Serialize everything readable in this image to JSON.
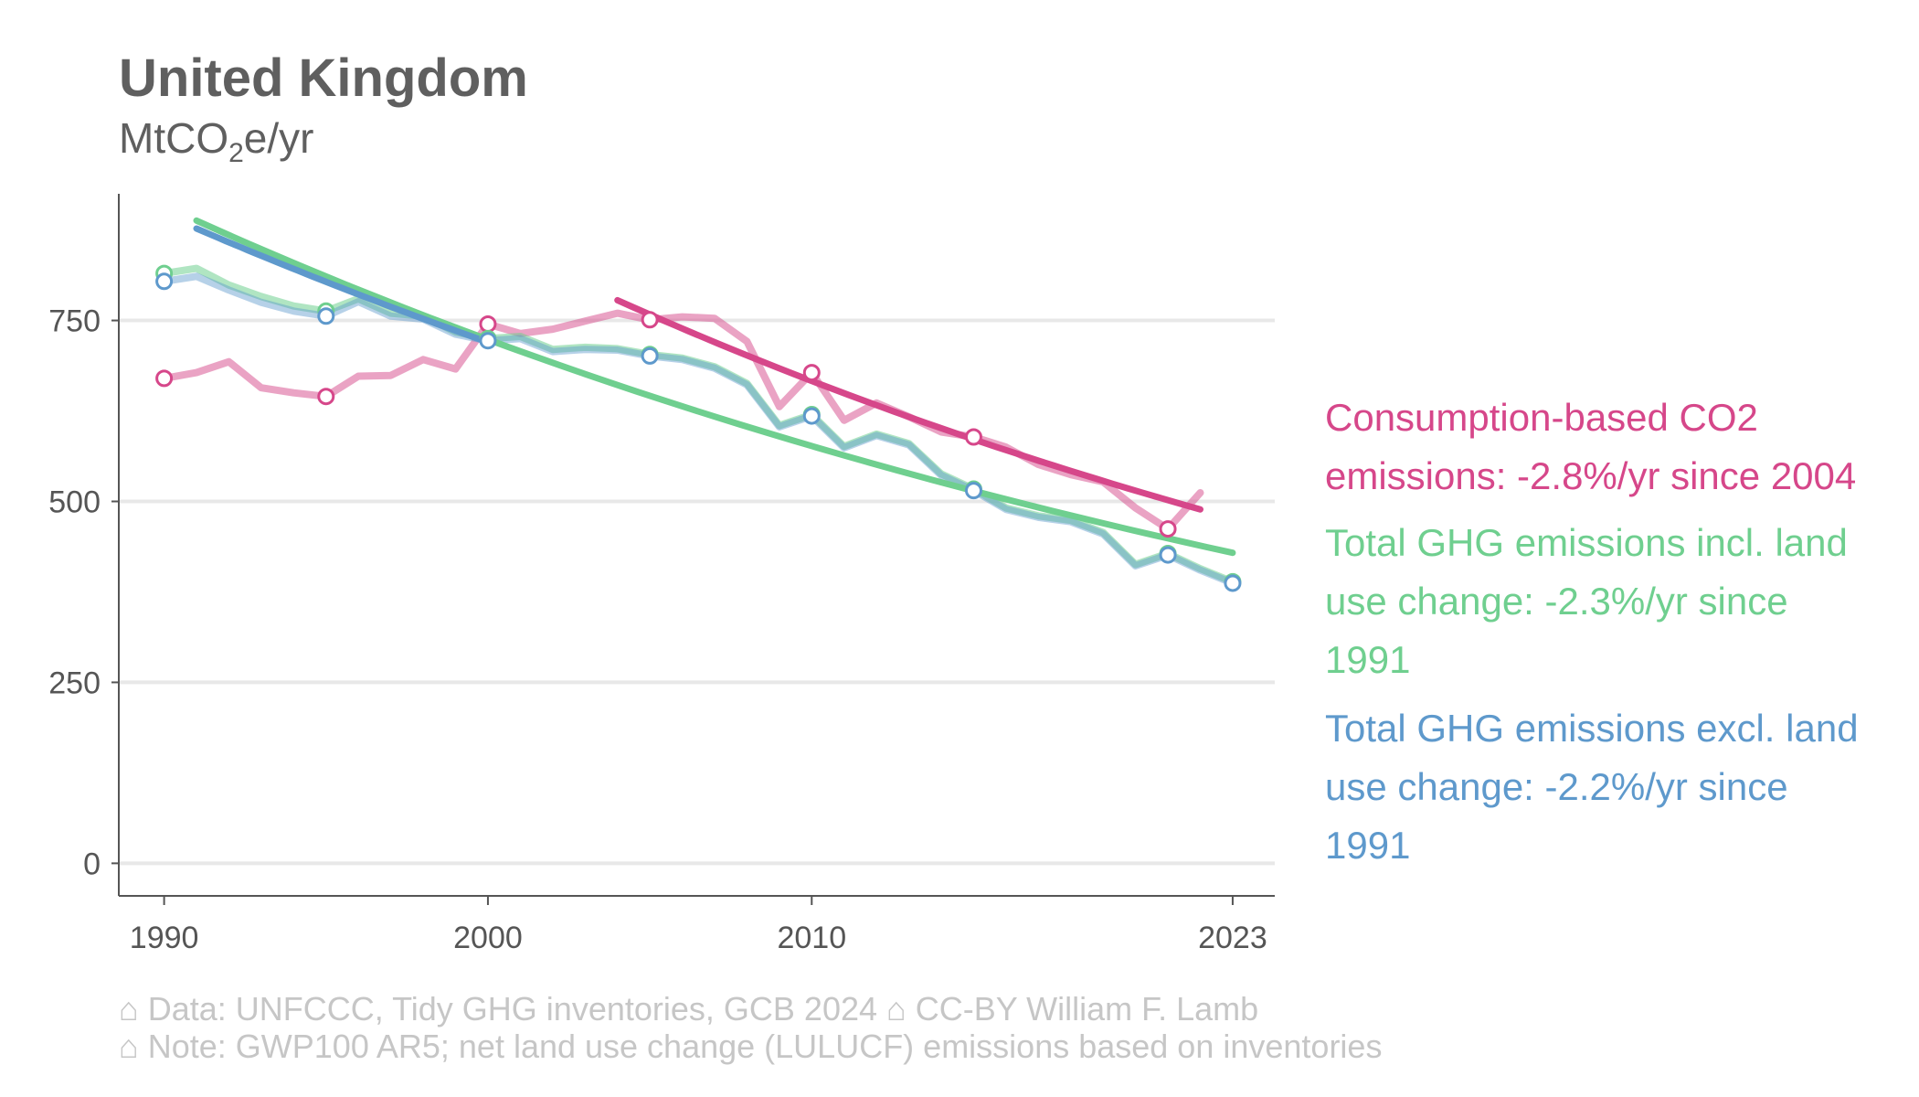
{
  "title": "United Kingdom",
  "subtitle_unit": {
    "main": "MtCO",
    "sub": "2",
    "tail": "e/yr"
  },
  "colors": {
    "consumption": "#d6478a",
    "incl_luc": "#6fcf8f",
    "excl_luc": "#5e99cc",
    "grid": "#e8e8e8",
    "axis": "#555555",
    "tick_text": "#555555",
    "footer": "#c6c6c6"
  },
  "chart_data": {
    "type": "line",
    "title": "United Kingdom",
    "ylabel": "MtCO2e/yr",
    "xlim": [
      1988.6,
      2024.3
    ],
    "ylim": [
      -45,
      925
    ],
    "x_ticks": [
      1990,
      2000,
      2010,
      2023
    ],
    "y_ticks": [
      0,
      250,
      500,
      750
    ],
    "grid": "horizontal",
    "series": [
      {
        "key": "consumption",
        "name": "Consumption-based CO2 emissions",
        "years": [
          1990,
          1991,
          1992,
          1993,
          1994,
          1995,
          1996,
          1997,
          1998,
          1999,
          2000,
          2001,
          2002,
          2003,
          2004,
          2005,
          2006,
          2007,
          2008,
          2009,
          2010,
          2011,
          2012,
          2013,
          2014,
          2015,
          2016,
          2017,
          2018,
          2019,
          2020,
          2021,
          2022
        ],
        "values": [
          670,
          678,
          693,
          657,
          650,
          645,
          673,
          674,
          696,
          683,
          745,
          732,
          738,
          749,
          760,
          751,
          755,
          753,
          721,
          631,
          678,
          612,
          636,
          617,
          596,
          589,
          575,
          551,
          537,
          527,
          491,
          462,
          512
        ],
        "markers": [
          1990,
          1995,
          2000,
          2005,
          2010,
          2015,
          2021
        ]
      },
      {
        "key": "incl_luc",
        "name": "Total GHG emissions incl. land use change",
        "years": [
          1990,
          1991,
          1992,
          1993,
          1994,
          1995,
          1996,
          1997,
          1998,
          1999,
          2000,
          2001,
          2002,
          2003,
          2004,
          2005,
          2006,
          2007,
          2008,
          2009,
          2010,
          2011,
          2012,
          2013,
          2014,
          2015,
          2016,
          2017,
          2018,
          2019,
          2020,
          2021,
          2022,
          2023
        ],
        "values": [
          815,
          822,
          799,
          783,
          770,
          763,
          780,
          760,
          756,
          734,
          725,
          728,
          710,
          713,
          711,
          703,
          698,
          686,
          663,
          605,
          620,
          576,
          593,
          580,
          538,
          517,
          491,
          480,
          474,
          457,
          413,
          428,
          407,
          389
        ],
        "markers": [
          1990,
          1995,
          2000,
          2005,
          2010,
          2015,
          2021,
          2023
        ]
      },
      {
        "key": "excl_luc",
        "name": "Total GHG emissions excl. land use change",
        "years": [
          1990,
          1991,
          1992,
          1993,
          1994,
          1995,
          1996,
          1997,
          1998,
          1999,
          2000,
          2001,
          2002,
          2003,
          2004,
          2005,
          2006,
          2007,
          2008,
          2009,
          2010,
          2011,
          2012,
          2013,
          2014,
          2015,
          2016,
          2017,
          2018,
          2019,
          2020,
          2021,
          2022,
          2023
        ],
        "values": [
          804,
          811,
          792,
          775,
          763,
          756,
          776,
          756,
          752,
          731,
          722,
          725,
          707,
          710,
          709,
          701,
          696,
          684,
          661,
          603,
          618,
          574,
          591,
          578,
          536,
          515,
          489,
          478,
          472,
          455,
          411,
          426,
          405,
          387
        ],
        "markers": [
          1990,
          1995,
          2000,
          2005,
          2010,
          2015,
          2021,
          2023
        ]
      }
    ],
    "trends": [
      {
        "key": "consumption",
        "rate_percent_per_yr": -2.8,
        "since": 2004,
        "end": 2022,
        "start_value": 778,
        "end_value": 489
      },
      {
        "key": "incl_luc",
        "rate_percent_per_yr": -2.3,
        "since": 1991,
        "end": 2023,
        "start_value": 888,
        "end_value": 429
      },
      {
        "key": "excl_luc",
        "rate_percent_per_yr": -2.2,
        "since": 1991,
        "end": 2000,
        "start_value": 877,
        "end_value": 720
      }
    ]
  },
  "legend": {
    "consumption": "Consumption-based CO2 emissions: -2.8%/yr since 2004",
    "incl_luc_lines": [
      "Total GHG emissions incl. land",
      "use change: -2.3%/yr since",
      "1991"
    ],
    "excl_luc_lines": [
      "Total GHG emissions excl. land",
      "use change: -2.2%/yr since",
      "1991"
    ],
    "consumption_lines": [
      "Consumption-based CO2",
      "emissions: -2.8%/yr since 2004"
    ]
  },
  "footer": {
    "line1": "⌂ Data: UNFCCC, Tidy GHG inventories, GCB 2024   ⌂ CC-BY William F. Lamb",
    "line2": "⌂ Note: GWP100 AR5; net land use change (LULUCF) emissions based on inventories"
  }
}
